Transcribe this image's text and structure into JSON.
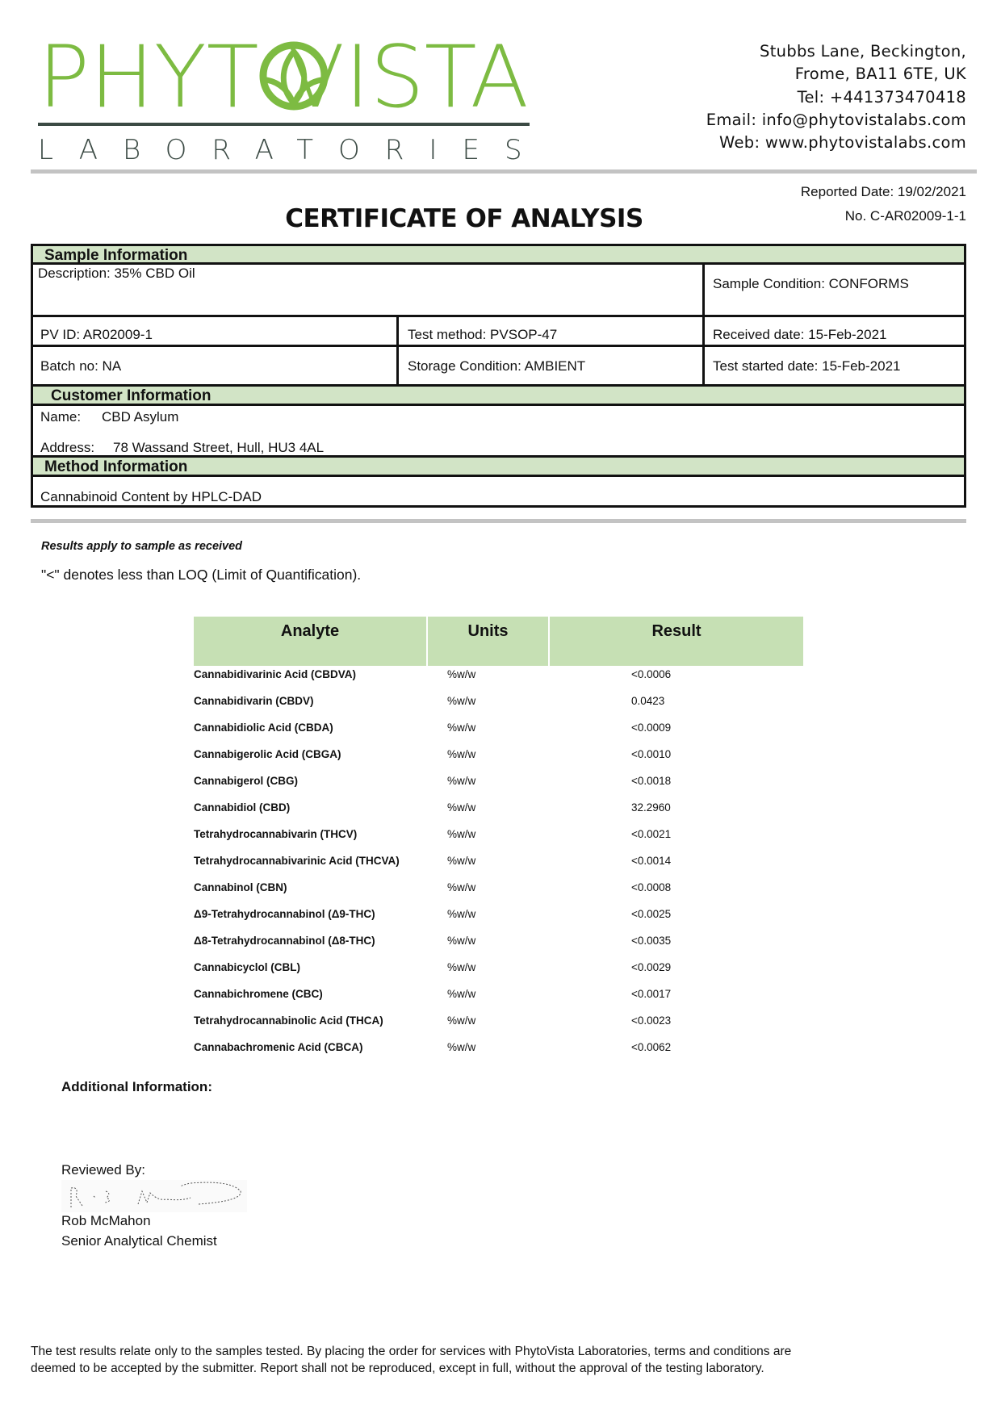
{
  "logo": {
    "name": "PHYTOVISTA",
    "subtitle": "LABORATORIES",
    "brand_color": "#7dbb42",
    "dark_color": "#3b4a44"
  },
  "contact": {
    "address1": "Stubbs Lane, Beckington,",
    "address2": "Frome, BA11 6TE, UK",
    "tel": "Tel: +441373470418",
    "email": "Email: info@phytovistalabs.com",
    "web": "Web: www.phytovistalabs.com"
  },
  "report": {
    "reported_date": "Reported Date: 19/02/2021",
    "number": "No. C-AR02009-1-1",
    "title": "CERTIFICATE OF ANALYSIS"
  },
  "sample": {
    "header": "Sample Information",
    "description": "Description: 35% CBD Oil",
    "condition": "Sample Condition: CONFORMS",
    "pv_id": "PV ID: AR02009-1",
    "test_method": "Test method: PVSOP-47",
    "received": "Received date: 15-Feb-2021",
    "batch": "Batch no: NA",
    "storage": "Storage Condition: AMBIENT",
    "test_started": "Test started date: 15-Feb-2021"
  },
  "customer": {
    "header": "Customer Information",
    "name_label": "Name:",
    "name": "CBD Asylum",
    "address_label": "Address:",
    "address": "78 Wassand Street, Hull, HU3 4AL"
  },
  "method": {
    "header": "Method Information",
    "text": "Cannabinoid Content by HPLC-DAD"
  },
  "notes": {
    "results_apply": "Results apply to sample as received",
    "loq": "\"<\" denotes less than LOQ (Limit of Quantification)."
  },
  "results": {
    "headers": [
      "Analyte",
      "Units",
      "Result"
    ],
    "header_color": "#c6e0b4",
    "rows": [
      [
        "Cannabidivarinic Acid (CBDVA)",
        "%w/w",
        "<0.0006"
      ],
      [
        "Cannabidivarin (CBDV)",
        "%w/w",
        "0.0423"
      ],
      [
        "Cannabidiolic Acid (CBDA)",
        "%w/w",
        "<0.0009"
      ],
      [
        "Cannabigerolic Acid (CBGA)",
        "%w/w",
        "<0.0010"
      ],
      [
        "Cannabigerol (CBG)",
        "%w/w",
        "<0.0018"
      ],
      [
        "Cannabidiol (CBD)",
        "%w/w",
        "32.2960"
      ],
      [
        "Tetrahydrocannabivarin (THCV)",
        "%w/w",
        "<0.0021"
      ],
      [
        "Tetrahydrocannabivarinic Acid (THCVA)",
        "%w/w",
        "<0.0014"
      ],
      [
        "Cannabinol (CBN)",
        "%w/w",
        "<0.0008"
      ],
      [
        "Δ9-Tetrahydrocannabinol (Δ9-THC)",
        "%w/w",
        "<0.0025"
      ],
      [
        "Δ8-Tetrahydrocannabinol (Δ8-THC)",
        "%w/w",
        "<0.0035"
      ],
      [
        "Cannabicyclol (CBL)",
        "%w/w",
        "<0.0029"
      ],
      [
        "Cannabichromene (CBC)",
        "%w/w",
        "<0.0017"
      ],
      [
        "Tetrahydrocannabinolic Acid (THCA)",
        "%w/w",
        "<0.0023"
      ],
      [
        "Cannabachromenic Acid (CBCA)",
        "%w/w",
        "<0.0062"
      ]
    ]
  },
  "additional": {
    "label": "Additional Information:"
  },
  "review": {
    "label": "Reviewed By:",
    "signature": "R. J. McMahon",
    "name": "Rob McMahon",
    "role": "Senior Analytical Chemist"
  },
  "footer": {
    "line1": "The test results relate only to the samples tested.  By placing the order for services with PhytoVista Laboratories, terms and conditions are",
    "line2": "deemed to be accepted by the submitter. Report shall not be reproduced, except in full, without the approval of the testing laboratory."
  }
}
